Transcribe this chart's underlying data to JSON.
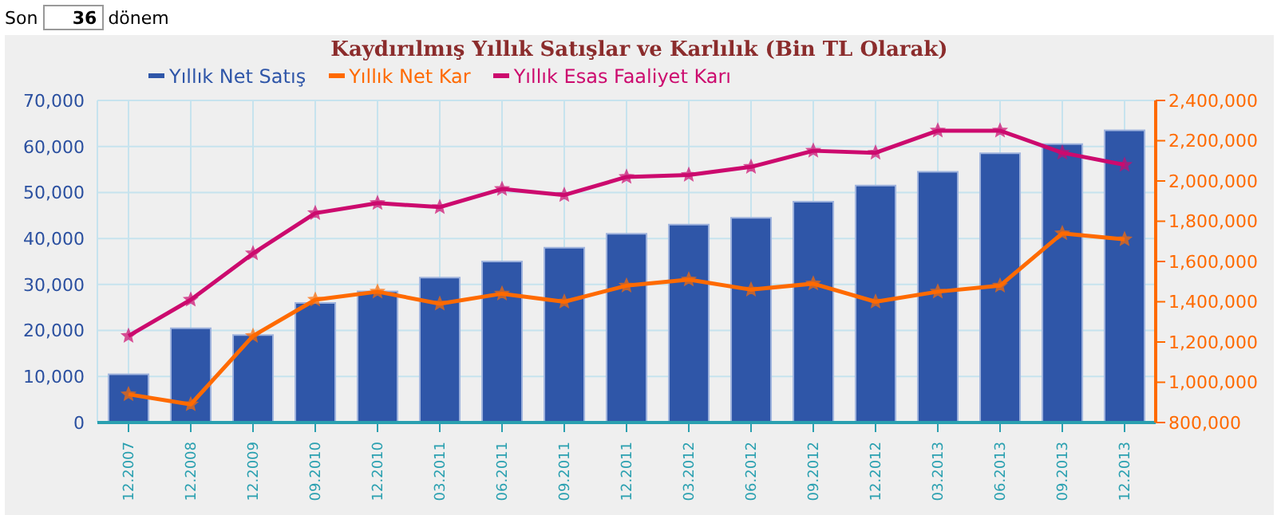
{
  "chart_data": {
    "type": "bar",
    "title": "Kaydırılmış Yıllık Satışlar ve Karlılık (Bin TL Olarak)",
    "annotations": [
      "Son",
      "36",
      "dönem"
    ],
    "categories": [
      "12.2007",
      "12.2008",
      "12.2009",
      "09.2010",
      "12.2010",
      "03.2011",
      "06.2011",
      "09.2011",
      "12.2011",
      "03.2012",
      "06.2012",
      "09.2012",
      "12.2012",
      "03.2013",
      "06.2013",
      "09.2013",
      "12.2013"
    ],
    "series": [
      {
        "name": "Yıllık Net Satış",
        "color": "#2f56a8",
        "values": [
          10500,
          20500,
          19000,
          26000,
          28500,
          31500,
          35000,
          38000,
          41000,
          43000,
          44500,
          48000,
          51500,
          54500,
          58500,
          60500,
          63500
        ]
      },
      {
        "name": "Yıllık Net Kar",
        "type": "line",
        "axis": "y2",
        "color": "#ff6a00",
        "values": [
          940000,
          890000,
          1230000,
          1410000,
          1450000,
          1390000,
          1440000,
          1400000,
          1480000,
          1510000,
          1460000,
          1490000,
          1400000,
          1450000,
          1480000,
          1740000,
          1710000
        ]
      },
      {
        "name": "Yıllık Esas Faaliyet Karı",
        "type": "line",
        "axis": "y2",
        "color": "#cc0a6e",
        "values": [
          1230000,
          1410000,
          1640000,
          1840000,
          1890000,
          1870000,
          1960000,
          1930000,
          2020000,
          2030000,
          2070000,
          2150000,
          2140000,
          2250000,
          2250000,
          2140000,
          2080000
        ]
      }
    ],
    "ylim": [
      0,
      70000
    ],
    "yticks": [
      0,
      {
        "value": 10000,
        "label": "10,000"
      },
      {
        "value": 20000,
        "label": "20,000"
      },
      {
        "value": 30000,
        "label": "30,000"
      },
      {
        "value": 40000,
        "label": "40,000"
      },
      {
        "value": 50000,
        "label": "50,000"
      },
      {
        "value": 60000,
        "label": "60,000"
      },
      {
        "value": 70000,
        "label": "70,000"
      }
    ],
    "y2lim": [
      800000,
      2400000
    ],
    "y2ticks": [
      {
        "value": 800000,
        "label": "800,000"
      },
      {
        "value": 1000000,
        "label": "1,000,000"
      },
      {
        "value": 1200000,
        "label": "1,200,000"
      },
      {
        "value": 1400000,
        "label": "1,400,000"
      },
      {
        "value": 1600000,
        "label": "1,600,000"
      },
      {
        "value": 1800000,
        "label": "1,800,000"
      },
      {
        "value": 2000000,
        "label": "2,000,000"
      },
      {
        "value": 2200000,
        "label": "2,200,000"
      },
      {
        "value": 2400000,
        "label": "2,400,000"
      }
    ],
    "grid": true,
    "legend": "top left",
    "marker": "star",
    "line_style": "solid"
  }
}
